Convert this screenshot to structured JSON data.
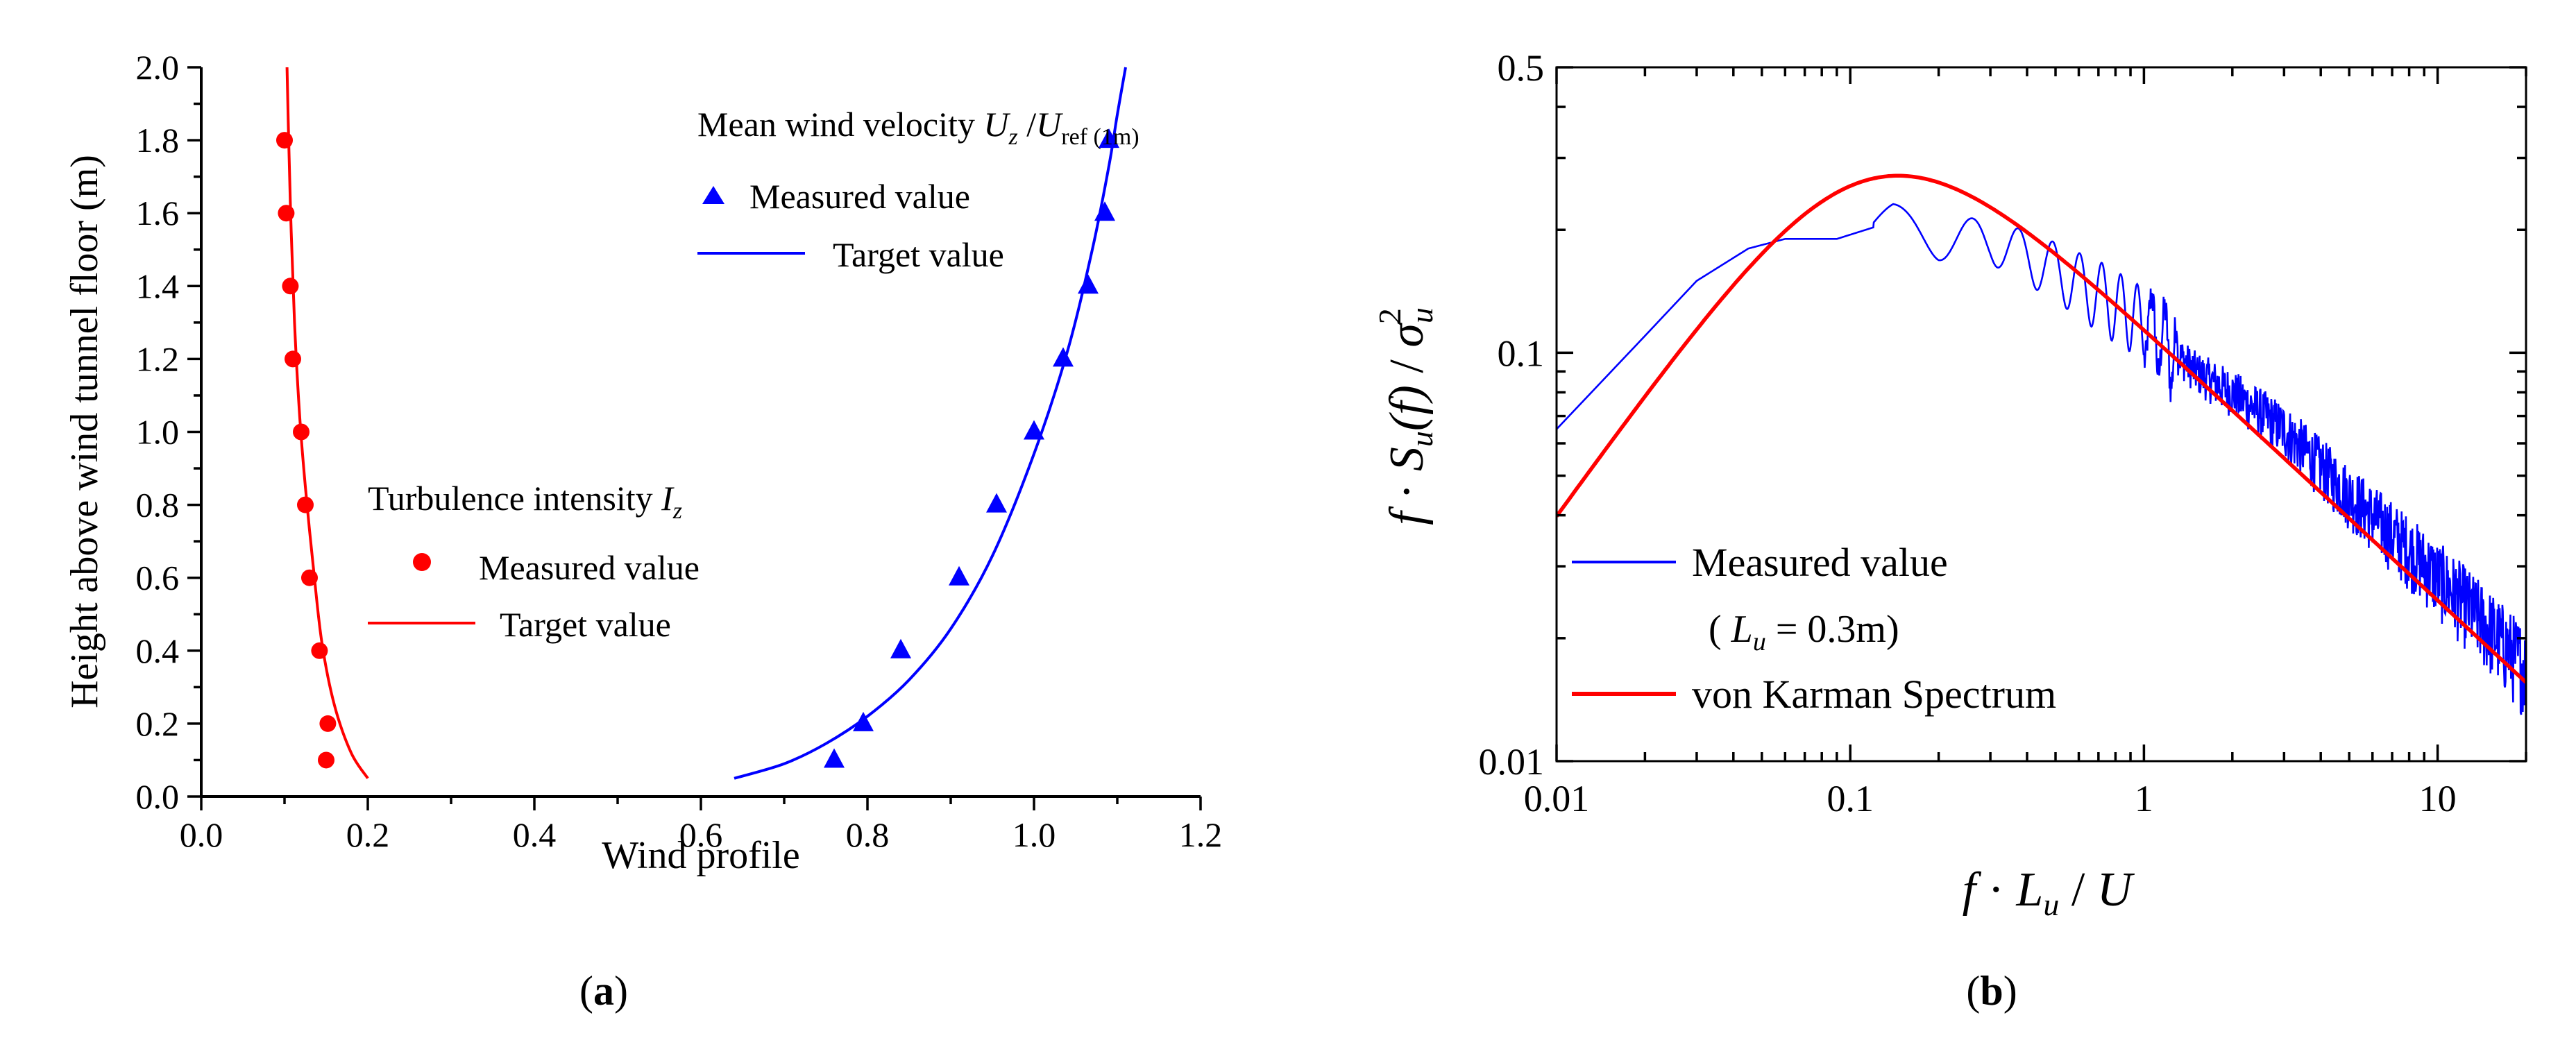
{
  "chart_data": [
    {
      "type": "line",
      "panel_label": "(a)",
      "xlabel": "Wind profile",
      "ylabel": "Height above wind tunnel floor (m)",
      "xlim": [
        0.0,
        1.2
      ],
      "ylim": [
        0.0,
        2.0
      ],
      "x_ticks": [
        "0.0",
        "0.2",
        "0.4",
        "0.6",
        "0.8",
        "1.0",
        "1.2"
      ],
      "y_ticks": [
        "0.0",
        "0.2",
        "0.4",
        "0.6",
        "0.8",
        "1.0",
        "1.2",
        "1.4",
        "1.6",
        "1.8",
        "2.0"
      ],
      "groups": [
        {
          "title": "Mean wind velocity",
          "title_math": {
            "var": "U",
            "sub": "z",
            "sep": " /",
            "var2": "U",
            "sub2": "ref (1m)"
          },
          "color": "#0000ff",
          "measured": {
            "label": "Measured value",
            "marker": "triangle",
            "points": [
              [
                0.76,
                0.1
              ],
              [
                0.795,
                0.2
              ],
              [
                0.84,
                0.4
              ],
              [
                0.91,
                0.6
              ],
              [
                0.955,
                0.8
              ],
              [
                1.0,
                1.0
              ],
              [
                1.035,
                1.2
              ],
              [
                1.065,
                1.4
              ],
              [
                1.085,
                1.6
              ],
              [
                1.09,
                1.8
              ]
            ]
          },
          "target": {
            "label": "Target value",
            "points": [
              [
                0.64,
                0.05
              ],
              [
                0.7,
                0.09
              ],
              [
                0.75,
                0.145
              ],
              [
                0.8,
                0.22
              ],
              [
                0.85,
                0.32
              ],
              [
                0.9,
                0.46
              ],
              [
                0.95,
                0.66
              ],
              [
                1.0,
                0.94
              ],
              [
                1.04,
                1.22
              ],
              [
                1.07,
                1.5
              ],
              [
                1.09,
                1.73
              ],
              [
                1.1,
                1.87
              ],
              [
                1.11,
                2.0
              ]
            ]
          }
        },
        {
          "title": "Turbulence intensity",
          "title_math": {
            "var": "I",
            "sub": "z"
          },
          "color": "#ff0000",
          "measured": {
            "label": "Measured value",
            "marker": "circle",
            "points": [
              [
                0.15,
                0.1
              ],
              [
                0.152,
                0.2
              ],
              [
                0.142,
                0.4
              ],
              [
                0.13,
                0.6
              ],
              [
                0.125,
                0.8
              ],
              [
                0.12,
                1.0
              ],
              [
                0.11,
                1.2
              ],
              [
                0.107,
                1.4
              ],
              [
                0.102,
                1.6
              ],
              [
                0.1,
                1.8
              ]
            ]
          },
          "target": {
            "label": "Target value",
            "points": [
              [
                0.2,
                0.05
              ],
              [
                0.18,
                0.12
              ],
              [
                0.16,
                0.25
              ],
              [
                0.145,
                0.42
              ],
              [
                0.135,
                0.62
              ],
              [
                0.125,
                0.85
              ],
              [
                0.118,
                1.05
              ],
              [
                0.112,
                1.3
              ],
              [
                0.108,
                1.55
              ],
              [
                0.105,
                1.8
              ],
              [
                0.103,
                2.0
              ]
            ]
          }
        }
      ]
    },
    {
      "type": "line",
      "panel_label": "(b)",
      "scale": "log-log",
      "xlim": [
        0.01,
        20
      ],
      "ylim": [
        0.01,
        0.5
      ],
      "x_ticks": [
        {
          "value": 0.01,
          "label": "0.01"
        },
        {
          "value": 0.1,
          "label": "0.1"
        },
        {
          "value": 1,
          "label": "1"
        },
        {
          "value": 10,
          "label": "10"
        }
      ],
      "y_ticks": [
        {
          "value": 0.01,
          "label": "0.01"
        },
        {
          "value": 0.1,
          "label": "0.1"
        },
        {
          "value": 0.5,
          "label": "0.5"
        }
      ],
      "xlabel_math": {
        "f": "f",
        "dot": " · ",
        "L": "L",
        "sub": "u",
        "tail": " / ",
        "U": "U"
      },
      "ylabel_math": {
        "f": "f",
        "dot": " · ",
        "S": "S",
        "sub": "u",
        "arg": "(f)",
        "sep": " / ",
        "sigma": "σ",
        "sigsub": "u",
        "sigsup": "2"
      },
      "series": [
        {
          "name": "Measured value",
          "note_math": {
            "open": "( ",
            "L": "L",
            "sub": "u",
            "tail": " = 0.3m)"
          },
          "color": "#0000ff",
          "anchors": [
            [
              0.01,
              0.065
            ],
            [
              0.02,
              0.11
            ],
            [
              0.03,
              0.15
            ],
            [
              0.045,
              0.18
            ],
            [
              0.06,
              0.19
            ],
            [
              0.09,
              0.19
            ],
            [
              0.14,
              0.21
            ],
            [
              0.2,
              0.19
            ],
            [
              0.3,
              0.19
            ],
            [
              0.5,
              0.16
            ],
            [
              0.7,
              0.14
            ],
            [
              1.0,
              0.12
            ],
            [
              1.5,
              0.09
            ],
            [
              2.0,
              0.08
            ],
            [
              3.0,
              0.065
            ],
            [
              5.0,
              0.045
            ],
            [
              8.0,
              0.033
            ],
            [
              12.0,
              0.025
            ],
            [
              20.0,
              0.017
            ]
          ],
          "noise": "spectral-fluctuation"
        },
        {
          "name": "von Karman Spectrum",
          "color": "#ff0000",
          "model": "von-karman",
          "note": "curve computed from von Karman spectral form; peak ~0.24 near f·Lu/U ≈ 0.14"
        }
      ]
    }
  ]
}
